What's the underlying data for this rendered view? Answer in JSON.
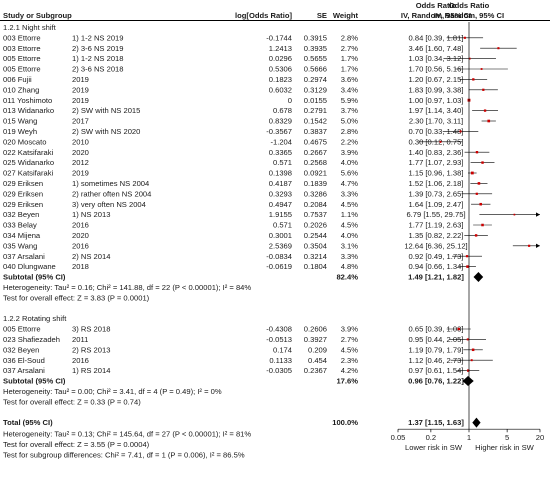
{
  "chart_data": {
    "type": "forest",
    "header": {
      "left_label": "Study or Subgroup",
      "col_logor": "log[Odds Ratio]",
      "col_se": "SE",
      "col_weight": "Weight",
      "col_ci_top": "Odds Ratio",
      "col_ci": "IV, Random, 95% CI",
      "plot_top": "Odds Ratio",
      "plot_sub": "IV, Random, 95% CI"
    },
    "groups": [
      {
        "title": "1.2.1 Night shift",
        "studies": [
          {
            "name": "003 Ettorre",
            "sub": "1) 1-2 NS 2019",
            "logor": "-0.1744",
            "se": "0.3915",
            "weight": "2.8%",
            "ci_text": "0.84 [0.39, 1.81]",
            "or": 0.84,
            "lo": 0.39,
            "hi": 1.81
          },
          {
            "name": "003 Ettorre",
            "sub": "2) 3-6 NS 2019",
            "logor": "1.2413",
            "se": "0.3935",
            "weight": "2.7%",
            "ci_text": "3.46 [1.60, 7.48]",
            "or": 3.46,
            "lo": 1.6,
            "hi": 7.48
          },
          {
            "name": "005 Ettorre",
            "sub": "1) 1-2 NS 2018",
            "logor": "0.0296",
            "se": "0.5655",
            "weight": "1.7%",
            "ci_text": "1.03 [0.34, 3.12]",
            "or": 1.03,
            "lo": 0.34,
            "hi": 3.12
          },
          {
            "name": "005 Ettorre",
            "sub": "2) 3-6 NS 2018",
            "logor": "0.5306",
            "se": "0.5666",
            "weight": "1.7%",
            "ci_text": "1.70 [0.56, 5.16]",
            "or": 1.7,
            "lo": 0.56,
            "hi": 5.16
          },
          {
            "name": "006 Fujii",
            "sub": "2019",
            "logor": "0.1823",
            "se": "0.2974",
            "weight": "3.6%",
            "ci_text": "1.20 [0.67, 2.15]",
            "or": 1.2,
            "lo": 0.67,
            "hi": 2.15
          },
          {
            "name": "010 Zhang",
            "sub": "2019",
            "logor": "0.6032",
            "se": "0.3129",
            "weight": "3.4%",
            "ci_text": "1.83 [0.99, 3.38]",
            "or": 1.83,
            "lo": 0.99,
            "hi": 3.38
          },
          {
            "name": "011 Yoshimoto",
            "sub": "2019",
            "logor": "0",
            "se": "0.0155",
            "weight": "5.9%",
            "ci_text": "1.00 [0.97, 1.03]",
            "or": 1.0,
            "lo": 0.97,
            "hi": 1.03
          },
          {
            "name": "013 Widanarko",
            "sub": "2) SW with NS 2015",
            "logor": "0.678",
            "se": "0.2791",
            "weight": "3.7%",
            "ci_text": "1.97 [1.14, 3.40]",
            "or": 1.97,
            "lo": 1.14,
            "hi": 3.4
          },
          {
            "name": "015 Wang",
            "sub": "2017",
            "logor": "0.8329",
            "se": "0.1542",
            "weight": "5.0%",
            "ci_text": "2.30 [1.70, 3.11]",
            "or": 2.3,
            "lo": 1.7,
            "hi": 3.11
          },
          {
            "name": "019 Weyh",
            "sub": "2) SW with NS 2020",
            "logor": "-0.3567",
            "se": "0.3837",
            "weight": "2.8%",
            "ci_text": "0.70 [0.33, 1.48]",
            "or": 0.7,
            "lo": 0.33,
            "hi": 1.48
          },
          {
            "name": "020 Moscato",
            "sub": "2010",
            "logor": "-1.204",
            "se": "0.4675",
            "weight": "2.2%",
            "ci_text": "0.30 [0.12, 0.75]",
            "or": 0.3,
            "lo": 0.12,
            "hi": 0.75
          },
          {
            "name": "022 Katsifaraki",
            "sub": "2020",
            "logor": "0.3365",
            "se": "0.2667",
            "weight": "3.9%",
            "ci_text": "1.40 [0.83, 2.36]",
            "or": 1.4,
            "lo": 0.83,
            "hi": 2.36
          },
          {
            "name": "025 Widanarko",
            "sub": "2012",
            "logor": "0.571",
            "se": "0.2568",
            "weight": "4.0%",
            "ci_text": "1.77 [1.07, 2.93]",
            "or": 1.77,
            "lo": 1.07,
            "hi": 2.93
          },
          {
            "name": "027 Katsifaraki",
            "sub": "2019",
            "logor": "0.1398",
            "se": "0.0921",
            "weight": "5.6%",
            "ci_text": "1.15 [0.96, 1.38]",
            "or": 1.15,
            "lo": 0.96,
            "hi": 1.38
          },
          {
            "name": "029 Eriksen",
            "sub": "1) sometimes NS 2004",
            "logor": "0.4187",
            "se": "0.1839",
            "weight": "4.7%",
            "ci_text": "1.52 [1.06, 2.18]",
            "or": 1.52,
            "lo": 1.06,
            "hi": 2.18
          },
          {
            "name": "029 Eriksen",
            "sub": "2) rather often NS 2004",
            "logor": "0.3293",
            "se": "0.3286",
            "weight": "3.3%",
            "ci_text": "1.39 [0.73, 2.65]",
            "or": 1.39,
            "lo": 0.73,
            "hi": 2.65
          },
          {
            "name": "029 Eriksen",
            "sub": "3) very often NS 2004",
            "logor": "0.4947",
            "se": "0.2084",
            "weight": "4.5%",
            "ci_text": "1.64 [1.09, 2.47]",
            "or": 1.64,
            "lo": 1.09,
            "hi": 2.47
          },
          {
            "name": "032 Beyen",
            "sub": "1) NS 2013",
            "logor": "1.9155",
            "se": "0.7537",
            "weight": "1.1%",
            "ci_text": "6.79 [1.55, 29.75]",
            "or": 6.79,
            "lo": 1.55,
            "hi": 29.75
          },
          {
            "name": "033 Belay",
            "sub": "2016",
            "logor": "0.571",
            "se": "0.2026",
            "weight": "4.5%",
            "ci_text": "1.77 [1.19, 2.63]",
            "or": 1.77,
            "lo": 1.19,
            "hi": 2.63
          },
          {
            "name": "034 Mijena",
            "sub": "2020",
            "logor": "0.3001",
            "se": "0.2544",
            "weight": "4.0%",
            "ci_text": "1.35 [0.82, 2.22]",
            "or": 1.35,
            "lo": 0.82,
            "hi": 2.22
          },
          {
            "name": "035 Wang",
            "sub": "2016",
            "logor": "2.5369",
            "se": "0.3504",
            "weight": "3.1%",
            "ci_text": "12.64 [6.36, 25.12]",
            "or": 12.64,
            "lo": 6.36,
            "hi": 25.12
          },
          {
            "name": "037 Arsalani",
            "sub": "2) NS 2014",
            "logor": "-0.0834",
            "se": "0.3214",
            "weight": "3.3%",
            "ci_text": "0.92 [0.49, 1.73]",
            "or": 0.92,
            "lo": 0.49,
            "hi": 1.73
          },
          {
            "name": "040 Dlungwane",
            "sub": "2018",
            "logor": "-0.0619",
            "se": "0.1804",
            "weight": "4.8%",
            "ci_text": "0.94 [0.66, 1.34]",
            "or": 0.94,
            "lo": 0.66,
            "hi": 1.34
          }
        ],
        "subtotal": {
          "label": "Subtotal (95% CI)",
          "weight": "82.4%",
          "ci_text": "1.49 [1.21, 1.82]",
          "or": 1.49,
          "lo": 1.21,
          "hi": 1.82
        },
        "stats": [
          "Heterogeneity: Tau² = 0.16; Chi² = 141.88, df = 22 (P < 0.00001); I² = 84%",
          "Test for overall effect: Z = 3.83 (P = 0.0001)"
        ]
      },
      {
        "title": "1.2.2 Rotating shift",
        "studies": [
          {
            "name": "005 Ettorre",
            "sub": "3) RS 2018",
            "logor": "-0.4308",
            "se": "0.2606",
            "weight": "3.9%",
            "ci_text": "0.65 [0.39, 1.08]",
            "or": 0.65,
            "lo": 0.39,
            "hi": 1.08
          },
          {
            "name": "023 Shafiezadeh",
            "sub": "2011",
            "logor": "-0.0513",
            "se": "0.3927",
            "weight": "2.7%",
            "ci_text": "0.95 [0.44, 2.05]",
            "or": 0.95,
            "lo": 0.44,
            "hi": 2.05
          },
          {
            "name": "032 Beyen",
            "sub": "2) RS 2013",
            "logor": "0.174",
            "se": "0.209",
            "weight": "4.5%",
            "ci_text": "1.19 [0.79, 1.79]",
            "or": 1.19,
            "lo": 0.79,
            "hi": 1.79
          },
          {
            "name": "036 El-Soud",
            "sub": "2016",
            "logor": "0.1133",
            "se": "0.454",
            "weight": "2.3%",
            "ci_text": "1.12 [0.46, 2.73]",
            "or": 1.12,
            "lo": 0.46,
            "hi": 2.73
          },
          {
            "name": "037 Arsalani",
            "sub": "1) RS 2014",
            "logor": "-0.0305",
            "se": "0.2367",
            "weight": "4.2%",
            "ci_text": "0.97 [0.61, 1.54]",
            "or": 0.97,
            "lo": 0.61,
            "hi": 1.54
          }
        ],
        "subtotal": {
          "label": "Subtotal (95% CI)",
          "weight": "17.6%",
          "ci_text": "0.96 [0.76, 1.22]",
          "or": 0.96,
          "lo": 0.76,
          "hi": 1.22
        },
        "stats": [
          "Heterogeneity: Tau² = 0.00; Chi² = 3.41, df = 4 (P = 0.49); I² = 0%",
          "Test for overall effect: Z = 0.33 (P = 0.74)"
        ]
      }
    ],
    "total": {
      "label": "Total (95% CI)",
      "weight": "100.0%",
      "ci_text": "1.37 [1.15, 1.63]",
      "or": 1.37,
      "lo": 1.15,
      "hi": 1.63
    },
    "footer": [
      "Heterogeneity: Tau² = 0.13; Chi² = 145.64, df = 27 (P < 0.00001); I² = 81%",
      "Test for overall effect: Z = 3.55 (P = 0.0004)",
      "Test for subgroup differences: Chi² = 7.41, df = 1 (P = 0.006), I² = 86.5%"
    ],
    "axis": {
      "scale": "log",
      "range": [
        0.05,
        20
      ],
      "ticks": [
        0.05,
        0.2,
        1,
        5,
        20
      ],
      "tick_labels": [
        "0.05",
        "0.2",
        "1",
        "5",
        "20"
      ],
      "left_label": "Lower risk in SW",
      "right_label": "Higher risk in SW"
    },
    "colors": {
      "estimate": "#cc0000",
      "summary": "#000000",
      "line": "#000000"
    }
  }
}
